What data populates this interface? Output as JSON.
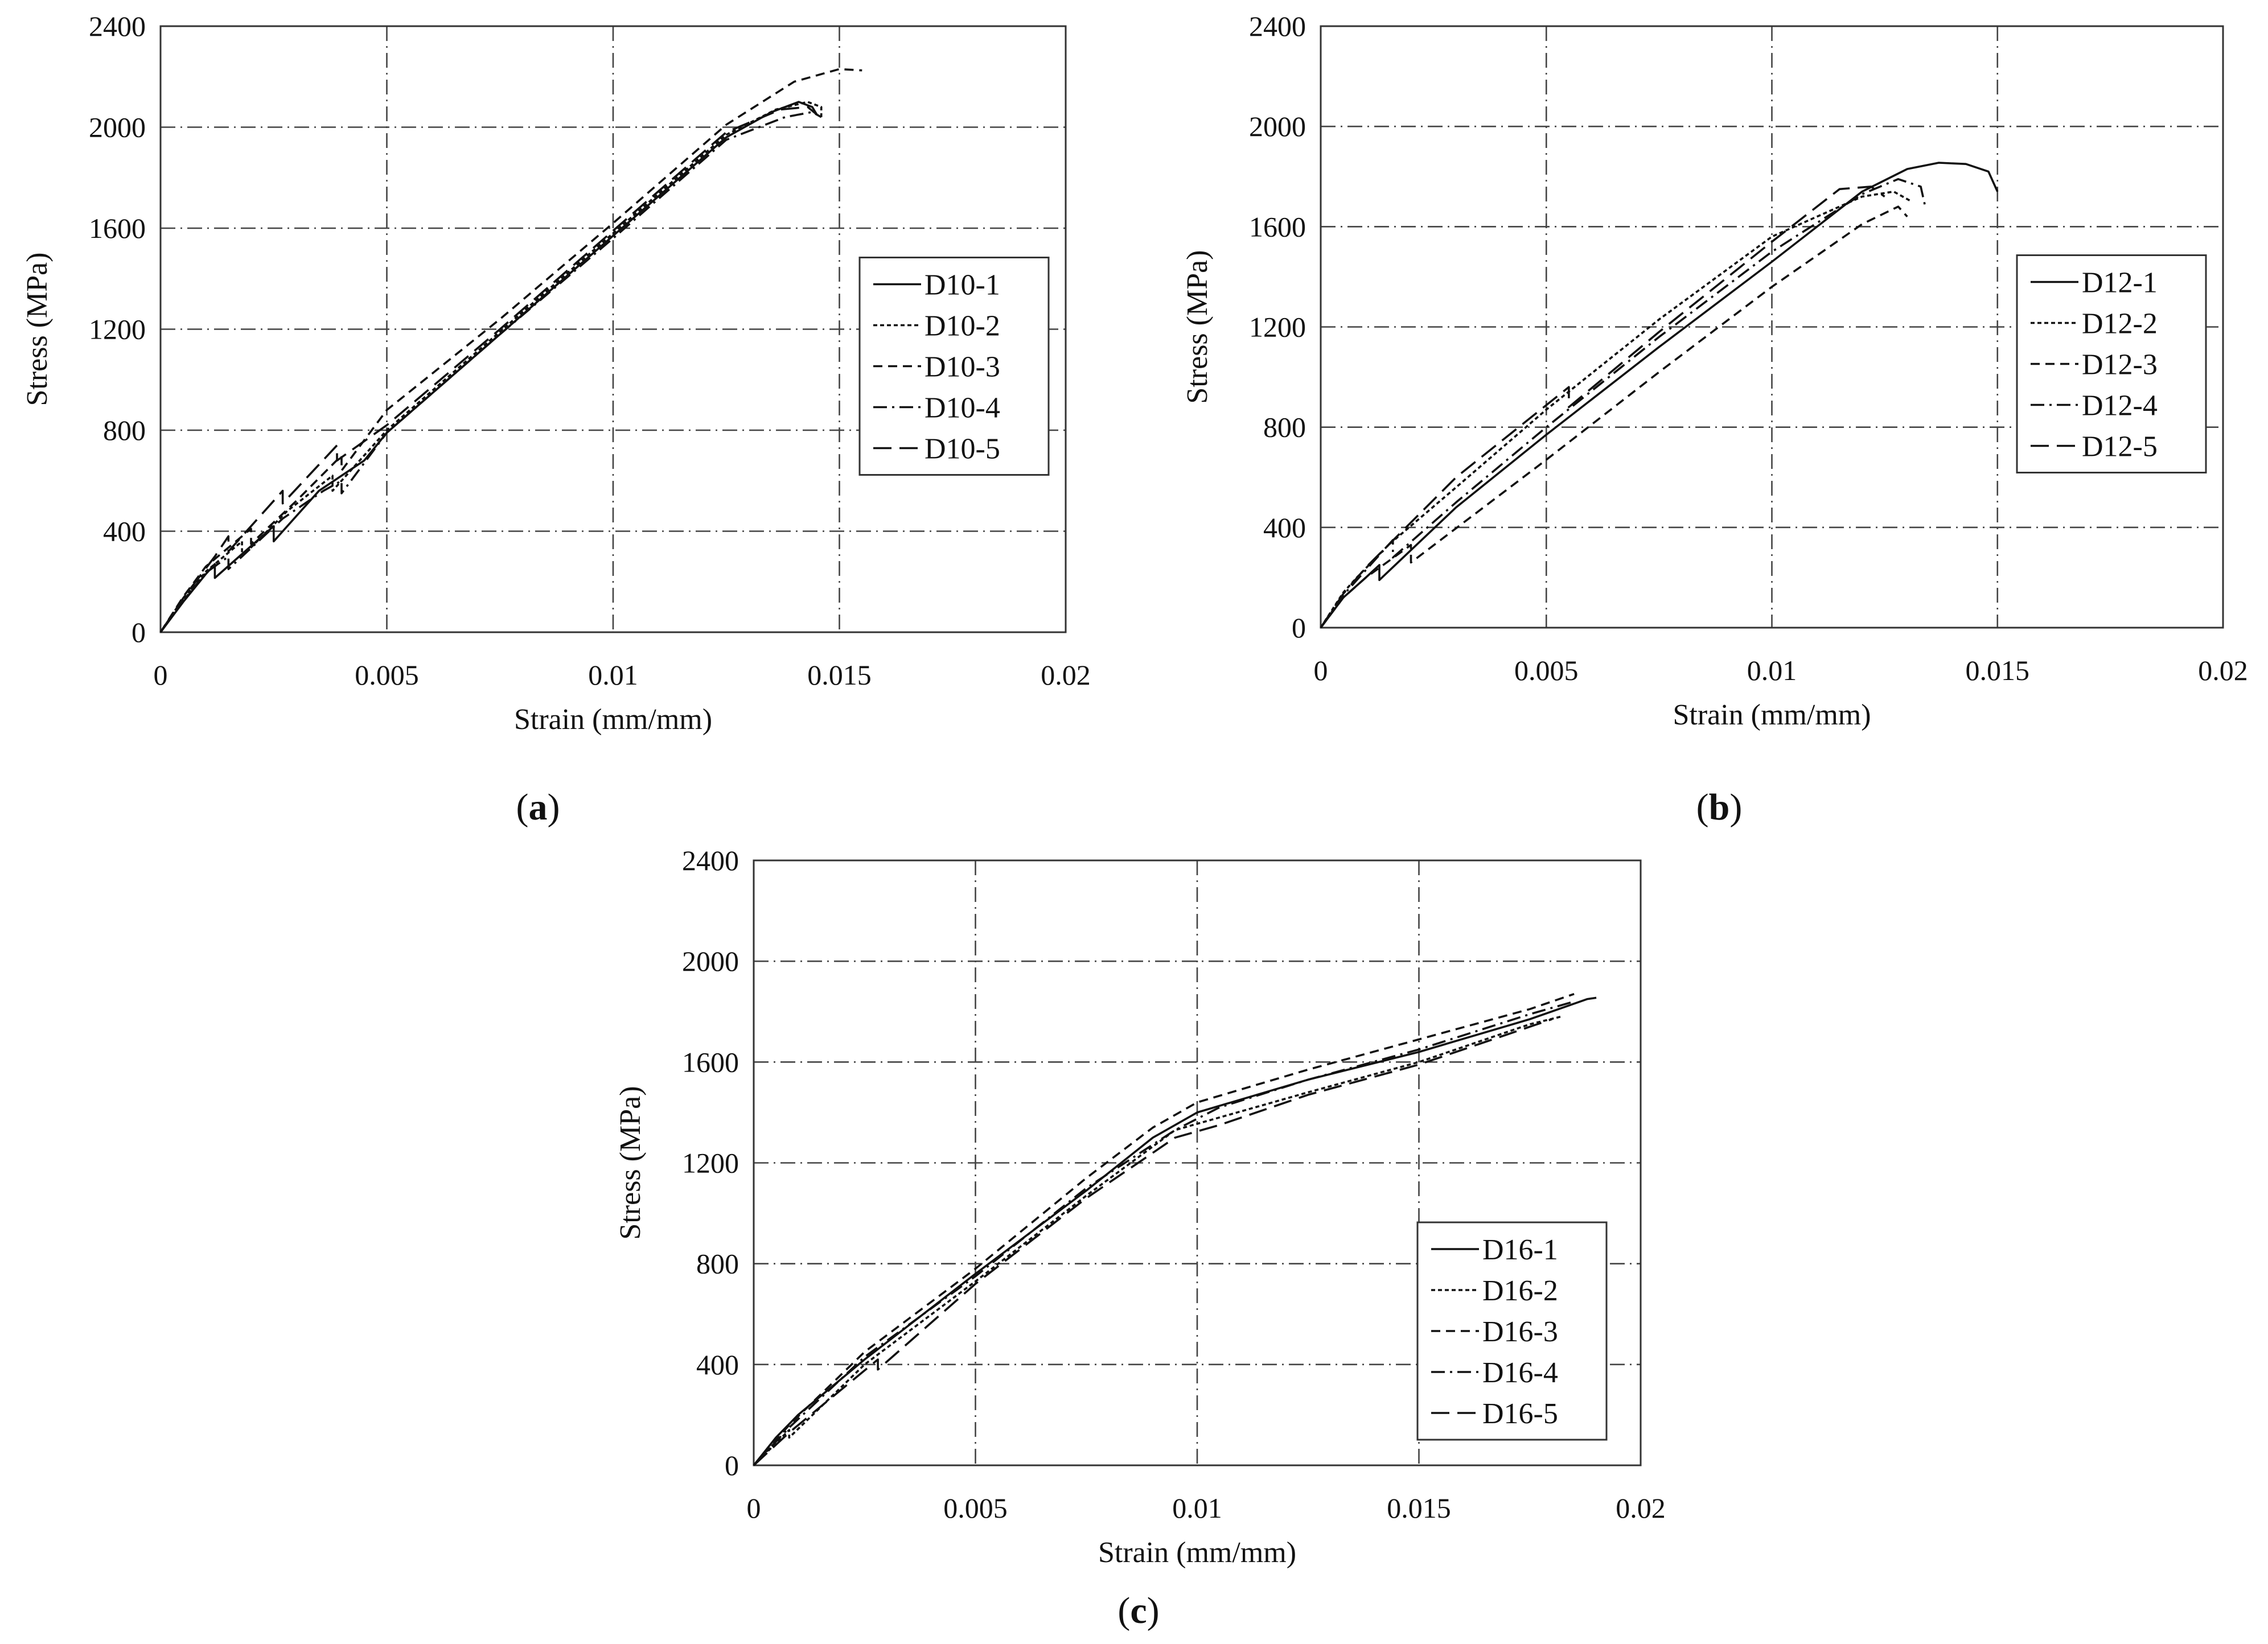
{
  "chart_data": [
    {
      "type": "line",
      "panel_label": "a",
      "xlabel": "Strain (mm/mm)",
      "ylabel": "Stress (MPa)",
      "xlim": [
        0,
        0.02
      ],
      "ylim": [
        0,
        2400
      ],
      "x_ticks": [
        "0",
        "0.005",
        "0.01",
        "0.015",
        "0.02"
      ],
      "y_ticks": [
        "0",
        "400",
        "800",
        "1200",
        "1600",
        "2000",
        "2400"
      ],
      "grid": true,
      "legend_position": "right",
      "series": [
        {
          "name": "D10-1",
          "style": "solid",
          "points": [
            [
              0,
              0
            ],
            [
              0.0005,
              120
            ],
            [
              0.001,
              230
            ],
            [
              0.0012,
              270
            ],
            [
              0.0012,
              215
            ],
            [
              0.0025,
              420
            ],
            [
              0.0025,
              360
            ],
            [
              0.0035,
              560
            ],
            [
              0.0045,
              680
            ],
            [
              0.005,
              790
            ],
            [
              0.0075,
              1180
            ],
            [
              0.01,
              1570
            ],
            [
              0.0125,
              1960
            ],
            [
              0.0135,
              2060
            ],
            [
              0.0141,
              2100
            ],
            [
              0.0144,
              2080
            ],
            [
              0.0145,
              2050
            ]
          ]
        },
        {
          "name": "D10-2",
          "style": "dotted",
          "points": [
            [
              0,
              0
            ],
            [
              0.0005,
              130
            ],
            [
              0.001,
              240
            ],
            [
              0.0018,
              360
            ],
            [
              0.0018,
              300
            ],
            [
              0.0028,
              480
            ],
            [
              0.0038,
              620
            ],
            [
              0.0038,
              560
            ],
            [
              0.005,
              800
            ],
            [
              0.0075,
              1190
            ],
            [
              0.01,
              1580
            ],
            [
              0.0125,
              1970
            ],
            [
              0.0136,
              2070
            ],
            [
              0.0143,
              2100
            ],
            [
              0.0146,
              2080
            ],
            [
              0.0146,
              2040
            ]
          ]
        },
        {
          "name": "D10-3",
          "style": "dashed",
          "points": [
            [
              0,
              0
            ],
            [
              0.0005,
              140
            ],
            [
              0.001,
              260
            ],
            [
              0.002,
              410
            ],
            [
              0.002,
              350
            ],
            [
              0.003,
              520
            ],
            [
              0.004,
              700
            ],
            [
              0.004,
              640
            ],
            [
              0.005,
              880
            ],
            [
              0.0075,
              1240
            ],
            [
              0.01,
              1620
            ],
            [
              0.0125,
              2010
            ],
            [
              0.014,
              2180
            ],
            [
              0.015,
              2230
            ],
            [
              0.0155,
              2225
            ]
          ]
        },
        {
          "name": "D10-4",
          "style": "dashdot",
          "points": [
            [
              0,
              0
            ],
            [
              0.0005,
              125
            ],
            [
              0.001,
              235
            ],
            [
              0.0015,
              300
            ],
            [
              0.0015,
              250
            ],
            [
              0.0027,
              450
            ],
            [
              0.0036,
              560
            ],
            [
              0.004,
              600
            ],
            [
              0.004,
              550
            ],
            [
              0.005,
              790
            ],
            [
              0.0075,
              1180
            ],
            [
              0.01,
              1560
            ],
            [
              0.0125,
              1950
            ],
            [
              0.0138,
              2040
            ],
            [
              0.0144,
              2060
            ],
            [
              0.0146,
              2040
            ]
          ]
        },
        {
          "name": "D10-5",
          "style": "longdash",
          "points": [
            [
              0,
              0
            ],
            [
              0.0005,
              135
            ],
            [
              0.0012,
              300
            ],
            [
              0.0015,
              380
            ],
            [
              0.0015,
              320
            ],
            [
              0.0027,
              560
            ],
            [
              0.0027,
              510
            ],
            [
              0.0039,
              740
            ],
            [
              0.0039,
              680
            ],
            [
              0.005,
              820
            ],
            [
              0.0075,
              1200
            ],
            [
              0.01,
              1590
            ],
            [
              0.0125,
              1980
            ],
            [
              0.0137,
              2070
            ],
            [
              0.0143,
              2080
            ],
            [
              0.0145,
              2050
            ]
          ]
        }
      ]
    },
    {
      "type": "line",
      "panel_label": "b",
      "xlabel": "Strain (mm/mm)",
      "ylabel": "Stress (MPa)",
      "xlim": [
        0,
        0.02
      ],
      "ylim": [
        0,
        2400
      ],
      "x_ticks": [
        "0",
        "0.005",
        "0.01",
        "0.015",
        "0.02"
      ],
      "y_ticks": [
        "0",
        "400",
        "800",
        "1200",
        "1600",
        "2000",
        "2400"
      ],
      "grid": true,
      "legend_position": "right",
      "series": [
        {
          "name": "D12-1",
          "style": "solid",
          "points": [
            [
              0,
              0
            ],
            [
              0.0005,
              120
            ],
            [
              0.001,
              200
            ],
            [
              0.0013,
              250
            ],
            [
              0.0013,
              190
            ],
            [
              0.003,
              480
            ],
            [
              0.005,
              770
            ],
            [
              0.0075,
              1120
            ],
            [
              0.01,
              1460
            ],
            [
              0.012,
              1740
            ],
            [
              0.013,
              1830
            ],
            [
              0.0137,
              1855
            ],
            [
              0.0143,
              1850
            ],
            [
              0.0148,
              1820
            ],
            [
              0.015,
              1740
            ]
          ]
        },
        {
          "name": "D12-2",
          "style": "dotted",
          "points": [
            [
              0,
              0
            ],
            [
              0.0005,
              140
            ],
            [
              0.0008,
              200
            ],
            [
              0.0015,
              330
            ],
            [
              0.003,
              560
            ],
            [
              0.005,
              870
            ],
            [
              0.0075,
              1230
            ],
            [
              0.01,
              1560
            ],
            [
              0.012,
              1720
            ],
            [
              0.0127,
              1740
            ],
            [
              0.0131,
              1700
            ]
          ]
        },
        {
          "name": "D12-3",
          "style": "dashed",
          "points": [
            [
              0,
              0
            ],
            [
              0.0005,
              120
            ],
            [
              0.001,
              200
            ],
            [
              0.002,
              330
            ],
            [
              0.002,
              260
            ],
            [
              0.005,
              670
            ],
            [
              0.0075,
              1020
            ],
            [
              0.01,
              1360
            ],
            [
              0.012,
              1610
            ],
            [
              0.0128,
              1680
            ],
            [
              0.013,
              1640
            ]
          ]
        },
        {
          "name": "D12-4",
          "style": "dashdot",
          "points": [
            [
              0,
              0
            ],
            [
              0.0005,
              130
            ],
            [
              0.001,
              230
            ],
            [
              0.0016,
              350
            ],
            [
              0.0016,
              280
            ],
            [
              0.003,
              500
            ],
            [
              0.005,
              800
            ],
            [
              0.0075,
              1160
            ],
            [
              0.01,
              1500
            ],
            [
              0.012,
              1730
            ],
            [
              0.0128,
              1790
            ],
            [
              0.0133,
              1760
            ],
            [
              0.0134,
              1680
            ]
          ]
        },
        {
          "name": "D12-5",
          "style": "longdash",
          "points": [
            [
              0,
              0
            ],
            [
              0.0005,
              135
            ],
            [
              0.001,
              240
            ],
            [
              0.003,
              600
            ],
            [
              0.0055,
              960
            ],
            [
              0.0055,
              880
            ],
            [
              0.0075,
              1180
            ],
            [
              0.01,
              1540
            ],
            [
              0.0115,
              1750
            ],
            [
              0.0122,
              1760
            ],
            [
              0.0125,
              1720
            ]
          ]
        }
      ]
    },
    {
      "type": "line",
      "panel_label": "c",
      "xlabel": "Strain (mm/mm)",
      "ylabel": "Stress (MPa)",
      "xlim": [
        0,
        0.02
      ],
      "ylim": [
        0,
        2400
      ],
      "x_ticks": [
        "0",
        "0.005",
        "0.01",
        "0.015",
        "0.02"
      ],
      "y_ticks": [
        "0",
        "400",
        "800",
        "1200",
        "1600",
        "2000",
        "2400"
      ],
      "grid": true,
      "legend_position": "bottom-right",
      "series": [
        {
          "name": "D16-1",
          "style": "solid",
          "points": [
            [
              0,
              0
            ],
            [
              0.0005,
              110
            ],
            [
              0.001,
              200
            ],
            [
              0.0025,
              420
            ],
            [
              0.005,
              760
            ],
            [
              0.0075,
              1090
            ],
            [
              0.009,
              1300
            ],
            [
              0.01,
              1400
            ],
            [
              0.0125,
              1530
            ],
            [
              0.015,
              1640
            ],
            [
              0.0175,
              1770
            ],
            [
              0.0188,
              1850
            ],
            [
              0.019,
              1855
            ]
          ]
        },
        {
          "name": "D16-2",
          "style": "dotted",
          "points": [
            [
              0,
              0
            ],
            [
              0.0008,
              140
            ],
            [
              0.0008,
              110
            ],
            [
              0.0025,
              400
            ],
            [
              0.005,
              730
            ],
            [
              0.0075,
              1070
            ],
            [
              0.0095,
              1330
            ],
            [
              0.0105,
              1380
            ],
            [
              0.0125,
              1480
            ],
            [
              0.015,
              1600
            ],
            [
              0.0175,
              1750
            ],
            [
              0.0182,
              1780
            ]
          ]
        },
        {
          "name": "D16-3",
          "style": "dashed",
          "points": [
            [
              0,
              0
            ],
            [
              0.0008,
              160
            ],
            [
              0.0025,
              450
            ],
            [
              0.005,
              780
            ],
            [
              0.0075,
              1140
            ],
            [
              0.009,
              1340
            ],
            [
              0.01,
              1440
            ],
            [
              0.0125,
              1570
            ],
            [
              0.015,
              1690
            ],
            [
              0.0175,
              1810
            ],
            [
              0.0185,
              1870
            ]
          ]
        },
        {
          "name": "D16-4",
          "style": "dashdot",
          "points": [
            [
              0,
              0
            ],
            [
              0.0008,
              150
            ],
            [
              0.0025,
              430
            ],
            [
              0.005,
              750
            ],
            [
              0.0075,
              1100
            ],
            [
              0.0095,
              1330
            ],
            [
              0.0105,
              1420
            ],
            [
              0.0125,
              1530
            ],
            [
              0.015,
              1650
            ],
            [
              0.0175,
              1790
            ],
            [
              0.0185,
              1840
            ]
          ]
        },
        {
          "name": "D16-5",
          "style": "longdash",
          "points": [
            [
              0,
              0
            ],
            [
              0.0008,
              130
            ],
            [
              0.0028,
              420
            ],
            [
              0.0028,
              380
            ],
            [
              0.005,
              720
            ],
            [
              0.0075,
              1060
            ],
            [
              0.0095,
              1300
            ],
            [
              0.0105,
              1350
            ],
            [
              0.0125,
              1470
            ],
            [
              0.015,
              1590
            ],
            [
              0.0175,
              1740
            ],
            [
              0.018,
              1770
            ]
          ]
        }
      ]
    }
  ]
}
